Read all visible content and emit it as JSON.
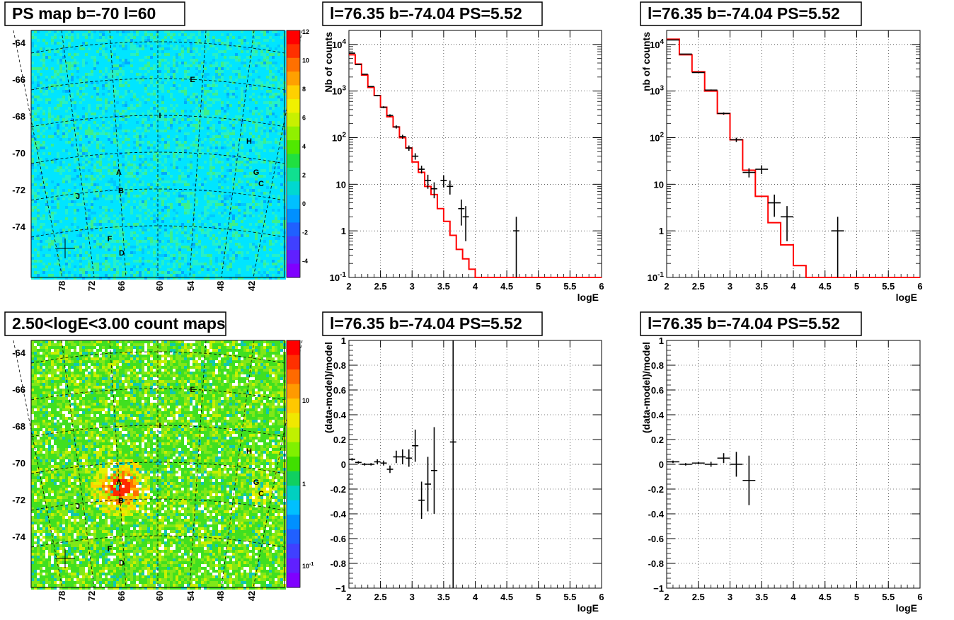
{
  "panels": [
    {
      "title": "PS map b=-70 l=60"
    },
    {
      "title": "l=76.35 b=-74.04 PS=5.52"
    },
    {
      "title": "l=76.35 b=-74.04 PS=5.52"
    },
    {
      "title": "2.50<logE<3.00 count maps"
    },
    {
      "title": "l=76.35 b=-74.04 PS=5.52"
    },
    {
      "title": "l=76.35 b=-74.04 PS=5.52"
    }
  ],
  "chart_data": [
    {
      "type": "heatmap",
      "title": "PS map b=-70 l=60",
      "ytick_labels": [
        "-64",
        "-66",
        "-68",
        "-70",
        "-72",
        "-74"
      ],
      "xtick_labels": [
        "78",
        "72",
        "66",
        "60",
        "54",
        "48",
        "42"
      ],
      "colorbar": {
        "range": [
          -5,
          12
        ],
        "tick_labels": [
          "12",
          "10",
          "8",
          "6",
          "4",
          "2",
          "0",
          "-2",
          "-4"
        ]
      },
      "sources": [
        {
          "label": "E"
        },
        {
          "label": "I"
        },
        {
          "label": "H"
        },
        {
          "label": "A"
        },
        {
          "label": "G"
        },
        {
          "label": "B"
        },
        {
          "label": "C"
        },
        {
          "label": "J"
        },
        {
          "label": "F"
        },
        {
          "label": "D"
        }
      ],
      "cross_marker": {
        "l": 78.2,
        "b": -73.9
      }
    },
    {
      "type": "line",
      "title": "l=76.35 b=-74.04 PS=5.52",
      "xlabel": "logE",
      "ylabel": "Nb of counts",
      "xlim": [
        2,
        6
      ],
      "ylim": [
        0.1,
        20000
      ],
      "log_y": true,
      "grid": true,
      "xtick_labels": [
        "2",
        "2.5",
        "3",
        "3.5",
        "4",
        "4.5",
        "5",
        "5.5",
        "6"
      ],
      "ytick_labels": [
        "10^4",
        "10^3",
        "10^2",
        "10",
        "1",
        "10^-1"
      ],
      "model_step": {
        "edges": [
          2,
          2.1,
          2.2,
          2.3,
          2.4,
          2.5,
          2.6,
          2.7,
          2.8,
          2.9,
          3.0,
          3.1,
          3.2,
          3.3,
          3.4,
          3.5,
          3.6,
          3.7,
          3.8,
          3.9,
          4.0,
          6.0
        ],
        "values": [
          6000,
          3800,
          2200,
          1200,
          800,
          450,
          280,
          170,
          100,
          60,
          30,
          18,
          9,
          6,
          3,
          1.6,
          0.8,
          0.4,
          0.25,
          0.15,
          0.1
        ]
      },
      "data_points": [
        {
          "x": 2.05,
          "y": 6500
        },
        {
          "x": 2.15,
          "y": 3700
        },
        {
          "x": 2.25,
          "y": 2300
        },
        {
          "x": 2.35,
          "y": 1250
        },
        {
          "x": 2.45,
          "y": 800
        },
        {
          "x": 2.55,
          "y": 450
        },
        {
          "x": 2.65,
          "y": 300
        },
        {
          "x": 2.75,
          "y": 170
        },
        {
          "x": 2.85,
          "y": 105
        },
        {
          "x": 2.95,
          "y": 60
        },
        {
          "x": 3.05,
          "y": 40
        },
        {
          "x": 3.15,
          "y": 21,
          "err": 4
        },
        {
          "x": 3.25,
          "y": 12,
          "err": 4
        },
        {
          "x": 3.35,
          "y": 8,
          "err": 3
        },
        {
          "x": 3.5,
          "y": 12,
          "err": 3.5
        },
        {
          "x": 3.6,
          "y": 9,
          "err": 3
        },
        {
          "x": 3.78,
          "y": 3,
          "err": 1.7
        },
        {
          "x": 3.85,
          "y": 2,
          "err": 1.4
        },
        {
          "x": 4.65,
          "y": 1,
          "err": 1
        }
      ]
    },
    {
      "type": "line",
      "title": "l=76.35 b=-74.04 PS=5.52",
      "xlabel": "logE",
      "ylabel": "nb of counts",
      "xlim": [
        2,
        6
      ],
      "ylim": [
        0.1,
        20000
      ],
      "log_y": true,
      "grid": true,
      "xtick_labels": [
        "2",
        "2.5",
        "3",
        "3.5",
        "4",
        "4.5",
        "5",
        "5.5",
        "6"
      ],
      "ytick_labels": [
        "10^4",
        "10^3",
        "10^2",
        "10",
        "1",
        "10^-1"
      ],
      "model_step": {
        "edges": [
          2,
          2.2,
          2.4,
          2.6,
          2.8,
          3.0,
          3.2,
          3.4,
          3.6,
          3.8,
          4.0,
          4.2,
          6.0
        ],
        "values": [
          13000,
          6000,
          2600,
          1000,
          330,
          90,
          20,
          5.5,
          1.5,
          0.5,
          0.18,
          0.1
        ]
      },
      "data_points": [
        {
          "x": 2.1,
          "y": 12500
        },
        {
          "x": 2.3,
          "y": 6200
        },
        {
          "x": 2.5,
          "y": 2500
        },
        {
          "x": 2.7,
          "y": 1050
        },
        {
          "x": 2.9,
          "y": 330
        },
        {
          "x": 3.1,
          "y": 90
        },
        {
          "x": 3.3,
          "y": 18,
          "err": 4
        },
        {
          "x": 3.5,
          "y": 21,
          "err": 4.5
        },
        {
          "x": 3.7,
          "y": 4,
          "err": 2
        },
        {
          "x": 3.9,
          "y": 2,
          "err": 1.4
        },
        {
          "x": 4.7,
          "y": 1,
          "err": 1
        }
      ]
    },
    {
      "type": "heatmap",
      "title": "2.50<logE<3.00 count maps",
      "ytick_labels": [
        "-64",
        "-66",
        "-68",
        "-70",
        "-72",
        "-74"
      ],
      "xtick_labels": [
        "78",
        "72",
        "66",
        "60",
        "54",
        "48",
        "42"
      ],
      "colorbar": {
        "log_scale": true,
        "tick_labels": [
          "10",
          "1",
          "10^-1"
        ]
      },
      "sources": [
        {
          "label": "E"
        },
        {
          "label": "I"
        },
        {
          "label": "H"
        },
        {
          "label": "A"
        },
        {
          "label": "G"
        },
        {
          "label": "B"
        },
        {
          "label": "C"
        },
        {
          "label": "J"
        },
        {
          "label": "F"
        },
        {
          "label": "D"
        }
      ],
      "cross_marker": {
        "l": 78.2,
        "b": -73.9
      }
    },
    {
      "type": "scatter",
      "title": "l=76.35 b=-74.04 PS=5.52",
      "xlabel": "logE",
      "ylabel": "(data-model)/model",
      "xlim": [
        2,
        6
      ],
      "ylim": [
        -1,
        1
      ],
      "grid": true,
      "xtick_labels": [
        "2",
        "2.5",
        "3",
        "3.5",
        "4",
        "4.5",
        "5",
        "5.5",
        "6"
      ],
      "ytick_labels": [
        "1",
        "0.8",
        "0.6",
        "0.4",
        "0.2",
        "0",
        "-0.2",
        "-0.4",
        "-0.6",
        "-0.8",
        "-1"
      ],
      "data_points": [
        {
          "x": 2.05,
          "y": 0.04,
          "err": 0.01
        },
        {
          "x": 2.15,
          "y": 0.015,
          "err": 0.01
        },
        {
          "x": 2.25,
          "y": 0.0,
          "err": 0.01
        },
        {
          "x": 2.35,
          "y": 0.0,
          "err": 0.01
        },
        {
          "x": 2.45,
          "y": 0.02,
          "err": 0.02
        },
        {
          "x": 2.55,
          "y": 0.01,
          "err": 0.02
        },
        {
          "x": 2.65,
          "y": -0.04,
          "err": 0.03
        },
        {
          "x": 2.75,
          "y": 0.06,
          "err": 0.05
        },
        {
          "x": 2.85,
          "y": 0.06,
          "err": 0.06
        },
        {
          "x": 2.95,
          "y": 0.05,
          "err": 0.07
        },
        {
          "x": 3.05,
          "y": 0.15,
          "err": 0.13
        },
        {
          "x": 3.15,
          "y": -0.29,
          "err": 0.15
        },
        {
          "x": 3.25,
          "y": -0.16,
          "err": 0.22
        },
        {
          "x": 3.35,
          "y": -0.05,
          "err": 0.35
        },
        {
          "x": 3.65,
          "y": 0.18,
          "err": 1.2
        }
      ]
    },
    {
      "type": "scatter",
      "title": "l=76.35 b=-74.04 PS=5.52",
      "xlabel": "logE",
      "ylabel": "(data-model)/model",
      "xlim": [
        2,
        6
      ],
      "ylim": [
        -1,
        1
      ],
      "grid": true,
      "xtick_labels": [
        "2",
        "2.5",
        "3",
        "3.5",
        "4",
        "4.5",
        "5",
        "5.5",
        "6"
      ],
      "ytick_labels": [
        "1",
        "0.8",
        "0.6",
        "0.4",
        "0.2",
        "0",
        "-0.2",
        "-0.4",
        "-0.6",
        "-0.8",
        "-1"
      ],
      "data_points": [
        {
          "x": 2.1,
          "y": 0.02,
          "err": 0.01
        },
        {
          "x": 2.3,
          "y": 0.0,
          "err": 0.01
        },
        {
          "x": 2.5,
          "y": 0.01,
          "err": 0.01
        },
        {
          "x": 2.7,
          "y": 0.0,
          "err": 0.02
        },
        {
          "x": 2.9,
          "y": 0.05,
          "err": 0.04
        },
        {
          "x": 3.1,
          "y": 0.0,
          "err": 0.1
        },
        {
          "x": 3.3,
          "y": -0.13,
          "err": 0.2
        }
      ]
    }
  ]
}
